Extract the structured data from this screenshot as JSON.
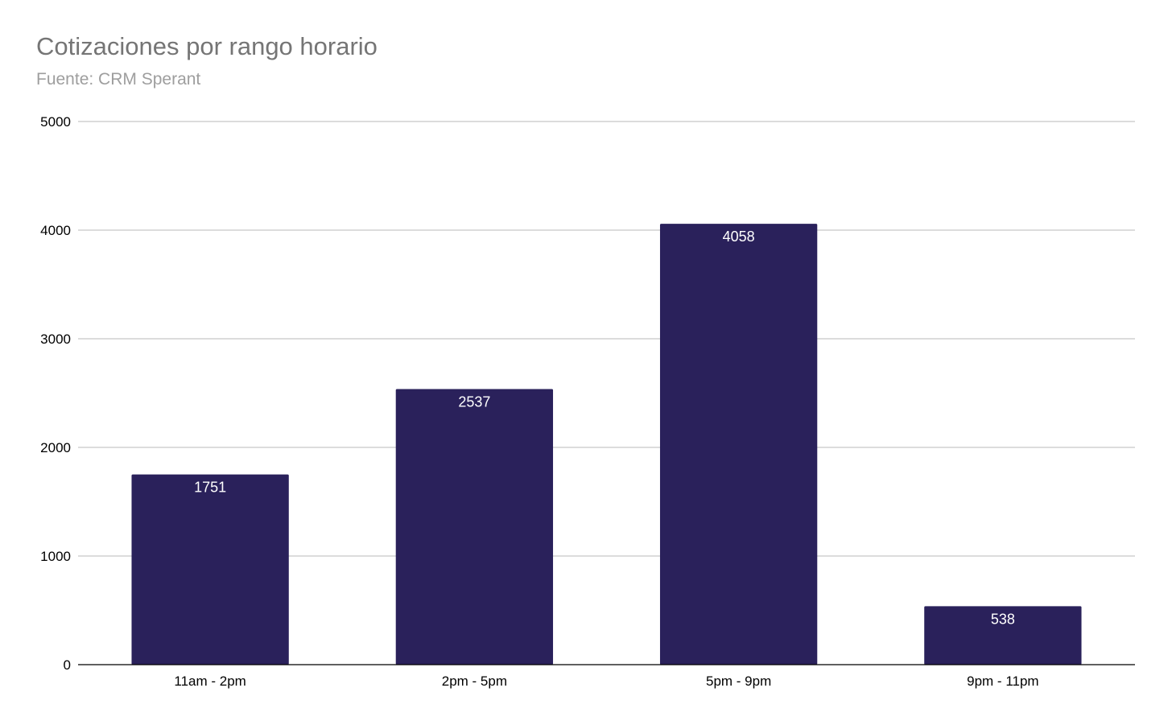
{
  "chart_data": {
    "type": "bar",
    "title": "Cotizaciones por rango horario",
    "subtitle": "Fuente: CRM Sperant",
    "xlabel": "",
    "ylabel": "",
    "categories": [
      "11am - 2pm",
      "2pm - 5pm",
      "5pm - 9pm",
      "9pm - 11pm"
    ],
    "values": [
      1751,
      2537,
      4058,
      538
    ],
    "data_labels": [
      "1751",
      "2537",
      "4058",
      "538"
    ],
    "ylim": [
      0,
      5000
    ],
    "yticks": [
      0,
      1000,
      2000,
      3000,
      4000,
      5000
    ],
    "ytick_labels": [
      "0",
      "1000",
      "2000",
      "3000",
      "4000",
      "5000"
    ],
    "grid": true,
    "legend": "none",
    "colors": {
      "bar": "#2a215b",
      "bar_label": "#ffffff",
      "grid": "#c7c7c7",
      "axis": "#000000",
      "title": "#757575",
      "subtitle": "#9e9e9e",
      "tick_label": "#000000"
    }
  }
}
